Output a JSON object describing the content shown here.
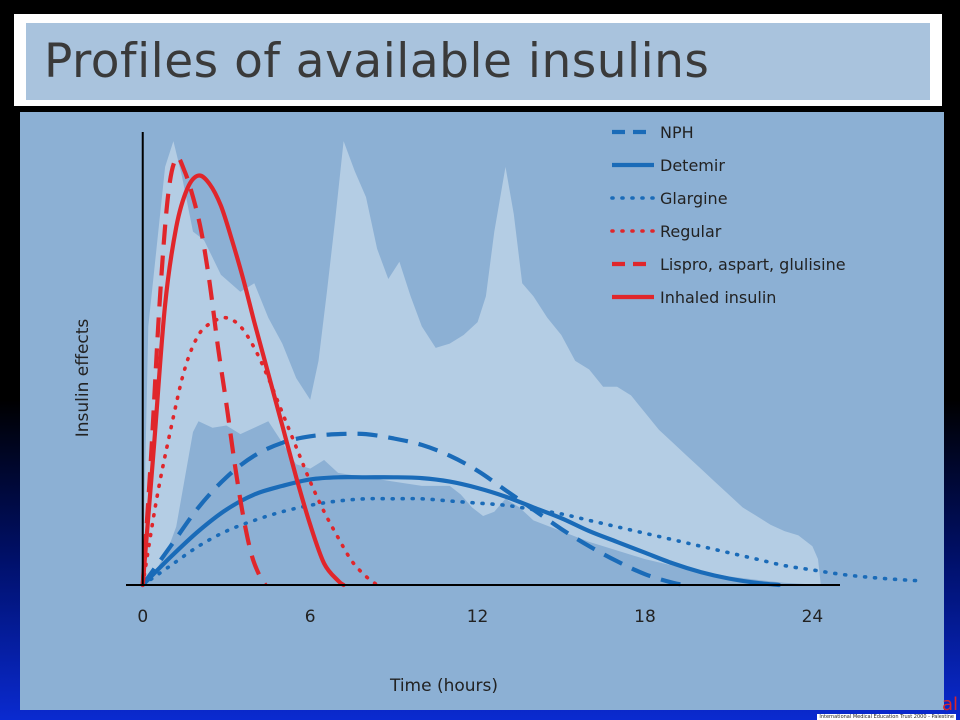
{
  "slide": {
    "title": "Profiles of available insulins",
    "corner_mark": "al",
    "corner_text": "International Medical Education Trust 2000 - Palestine"
  },
  "colors": {
    "blue": "#1a6bb8",
    "red": "#e0262b",
    "band": "#b4cde4",
    "panel": "#8cb0d4"
  },
  "chart_data": {
    "type": "line",
    "xlabel": "Time (hours)",
    "ylabel": "Insulin effects",
    "xticks": [
      0,
      6,
      12,
      18,
      24
    ],
    "xlim": [
      -0.6,
      28
    ],
    "ylim": [
      0,
      100
    ],
    "legend_position": "top-right",
    "series": [
      {
        "name": "NPH",
        "color": "blue",
        "style": "dashed",
        "points": [
          [
            0,
            0
          ],
          [
            1,
            9
          ],
          [
            2,
            18
          ],
          [
            3,
            25
          ],
          [
            4,
            30
          ],
          [
            5,
            33
          ],
          [
            6,
            34.5
          ],
          [
            7,
            35
          ],
          [
            8,
            35
          ],
          [
            9,
            34
          ],
          [
            10,
            32.5
          ],
          [
            11,
            30
          ],
          [
            12,
            26.5
          ],
          [
            13,
            22
          ],
          [
            14,
            17.5
          ],
          [
            15,
            13
          ],
          [
            16,
            9
          ],
          [
            17,
            5.5
          ],
          [
            18,
            2.5
          ],
          [
            19,
            0.5
          ],
          [
            19.5,
            0
          ]
        ]
      },
      {
        "name": "Detemir",
        "color": "blue",
        "style": "solid",
        "points": [
          [
            0,
            0
          ],
          [
            1,
            6.5
          ],
          [
            2,
            12.5
          ],
          [
            3,
            17.5
          ],
          [
            4,
            21
          ],
          [
            5,
            23
          ],
          [
            6,
            24.5
          ],
          [
            7,
            25
          ],
          [
            8,
            25
          ],
          [
            9,
            25
          ],
          [
            10,
            24.8
          ],
          [
            11,
            24
          ],
          [
            12,
            22.5
          ],
          [
            13,
            20.5
          ],
          [
            14,
            18
          ],
          [
            15,
            15.5
          ],
          [
            16,
            12.5
          ],
          [
            17,
            10
          ],
          [
            18,
            7.5
          ],
          [
            19,
            5
          ],
          [
            20,
            3
          ],
          [
            21,
            1.5
          ],
          [
            22,
            0.5
          ],
          [
            22.8,
            0
          ]
        ]
      },
      {
        "name": "Glargine",
        "color": "blue",
        "style": "dotted",
        "points": [
          [
            0,
            0
          ],
          [
            1,
            4.5
          ],
          [
            2,
            9
          ],
          [
            3,
            12.5
          ],
          [
            4,
            15
          ],
          [
            5,
            17
          ],
          [
            6,
            18.5
          ],
          [
            7,
            19.5
          ],
          [
            8,
            20
          ],
          [
            9,
            20
          ],
          [
            10,
            20
          ],
          [
            11,
            19.5
          ],
          [
            12,
            19
          ],
          [
            13,
            18.5
          ],
          [
            14,
            17.5
          ],
          [
            15,
            16.5
          ],
          [
            16,
            15
          ],
          [
            17,
            13.5
          ],
          [
            18,
            12
          ],
          [
            19,
            10.5
          ],
          [
            20,
            9
          ],
          [
            21,
            7.5
          ],
          [
            22,
            6
          ],
          [
            23,
            4.5
          ],
          [
            24,
            3.5
          ],
          [
            25,
            2.5
          ],
          [
            26,
            1.8
          ],
          [
            27,
            1.3
          ],
          [
            27.8,
            1
          ]
        ]
      },
      {
        "name": "Regular",
        "color": "red",
        "style": "dotted",
        "points": [
          [
            0,
            0
          ],
          [
            0.5,
            20
          ],
          [
            1,
            36
          ],
          [
            1.5,
            50
          ],
          [
            2,
            58
          ],
          [
            2.5,
            61
          ],
          [
            3,
            62
          ],
          [
            3.5,
            60
          ],
          [
            4,
            55
          ],
          [
            4.5,
            48
          ],
          [
            5,
            40
          ],
          [
            5.5,
            32
          ],
          [
            6,
            24
          ],
          [
            6.5,
            17
          ],
          [
            7,
            11
          ],
          [
            7.5,
            5.5
          ],
          [
            8,
            2
          ],
          [
            8.4,
            0
          ]
        ]
      },
      {
        "name": "Lispro, aspart, glulisine",
        "color": "red",
        "style": "dashed",
        "points": [
          [
            0,
            0
          ],
          [
            0.3,
            30
          ],
          [
            0.6,
            65
          ],
          [
            0.9,
            90
          ],
          [
            1.2,
            99
          ],
          [
            1.5,
            96
          ],
          [
            1.8,
            90
          ],
          [
            2.1,
            82
          ],
          [
            2.4,
            70
          ],
          [
            2.7,
            55
          ],
          [
            3,
            42
          ],
          [
            3.3,
            28
          ],
          [
            3.6,
            16
          ],
          [
            3.9,
            7
          ],
          [
            4.2,
            2
          ],
          [
            4.4,
            0
          ]
        ]
      },
      {
        "name": "Inhaled insulin",
        "color": "red",
        "style": "solid",
        "points": [
          [
            0,
            0
          ],
          [
            0.4,
            32
          ],
          [
            0.8,
            65
          ],
          [
            1.2,
            83
          ],
          [
            1.6,
            92
          ],
          [
            2,
            95
          ],
          [
            2.4,
            93
          ],
          [
            2.8,
            88
          ],
          [
            3.2,
            80
          ],
          [
            3.6,
            71
          ],
          [
            4,
            61
          ],
          [
            4.5,
            49
          ],
          [
            5,
            37
          ],
          [
            5.5,
            25
          ],
          [
            6,
            14
          ],
          [
            6.5,
            5
          ],
          [
            7,
            1
          ],
          [
            7.2,
            0
          ]
        ]
      }
    ],
    "band": {
      "upper": [
        [
          0,
          0
        ],
        [
          0.2,
          60
        ],
        [
          0.8,
          97
        ],
        [
          1.1,
          103
        ],
        [
          1.4,
          95
        ],
        [
          1.8,
          82
        ],
        [
          2.2,
          80
        ],
        [
          2.8,
          72
        ],
        [
          3.5,
          68
        ],
        [
          4,
          70
        ],
        [
          4.5,
          62
        ],
        [
          5,
          56
        ],
        [
          5.5,
          48
        ],
        [
          6,
          43
        ],
        [
          6.3,
          52
        ],
        [
          6.6,
          68
        ],
        [
          6.9,
          85
        ],
        [
          7.2,
          103
        ],
        [
          7.6,
          96
        ],
        [
          8,
          90
        ],
        [
          8.4,
          78
        ],
        [
          8.8,
          71
        ],
        [
          9.2,
          75
        ],
        [
          9.6,
          67
        ],
        [
          10,
          60
        ],
        [
          10.5,
          55
        ],
        [
          11,
          56
        ],
        [
          11.5,
          58
        ],
        [
          12,
          61
        ],
        [
          12.3,
          67
        ],
        [
          12.6,
          82
        ],
        [
          13,
          97
        ],
        [
          13.3,
          86
        ],
        [
          13.6,
          70
        ],
        [
          14,
          67
        ],
        [
          14.5,
          62
        ],
        [
          15,
          58
        ],
        [
          15.5,
          52
        ],
        [
          16,
          50
        ],
        [
          16.5,
          46
        ],
        [
          17,
          46
        ],
        [
          17.5,
          44
        ],
        [
          18,
          40
        ],
        [
          18.5,
          36
        ],
        [
          19,
          33
        ],
        [
          19.5,
          30
        ],
        [
          20,
          27
        ],
        [
          20.5,
          24
        ],
        [
          21,
          21
        ],
        [
          21.5,
          18
        ],
        [
          22,
          16
        ],
        [
          22.5,
          14
        ],
        [
          23,
          12.5
        ],
        [
          23.5,
          11.5
        ],
        [
          24,
          9
        ],
        [
          24.2,
          6
        ],
        [
          24.3,
          0
        ]
      ],
      "lower": [
        [
          24.3,
          0
        ],
        [
          23,
          0.5
        ],
        [
          22,
          1.2
        ],
        [
          21,
          2
        ],
        [
          20,
          3.2
        ],
        [
          19,
          4.5
        ],
        [
          18,
          6
        ],
        [
          17,
          8
        ],
        [
          16,
          10
        ],
        [
          15,
          12.5
        ],
        [
          14,
          15
        ],
        [
          13.5,
          18
        ],
        [
          13,
          20
        ],
        [
          12.6,
          17
        ],
        [
          12.2,
          16
        ],
        [
          11.8,
          18
        ],
        [
          11.4,
          21
        ],
        [
          11,
          23
        ],
        [
          10,
          23
        ],
        [
          9,
          24
        ],
        [
          8,
          25
        ],
        [
          7,
          26
        ],
        [
          6.5,
          29
        ],
        [
          6,
          27
        ],
        [
          5.5,
          28
        ],
        [
          5,
          33
        ],
        [
          4.5,
          38
        ],
        [
          4,
          36.5
        ],
        [
          3.5,
          35
        ],
        [
          3,
          37
        ],
        [
          2.5,
          36.5
        ],
        [
          2,
          38
        ],
        [
          1.8,
          35.5
        ],
        [
          1.5,
          24.5
        ],
        [
          1.2,
          13.5
        ],
        [
          1,
          10
        ],
        [
          0.7,
          6
        ],
        [
          0.4,
          2.5
        ],
        [
          0,
          0
        ]
      ]
    }
  }
}
